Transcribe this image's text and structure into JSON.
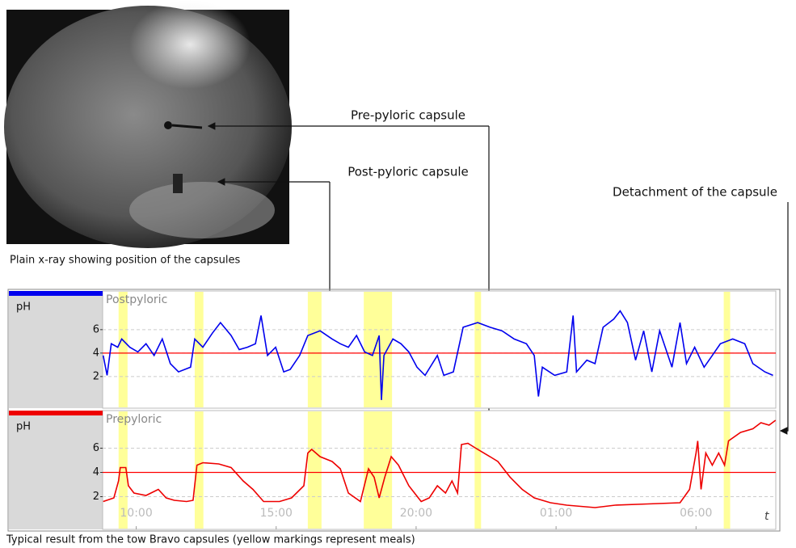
{
  "image": {
    "caption": "Plain x-ray showing position of the capsules"
  },
  "annotations": {
    "pre_pyloric": "Pre-pyloric capsule",
    "post_pyloric": "Post-pyloric capsule",
    "detachment": "Detachment of the capsule"
  },
  "caption": "Typical result from the tow Bravo capsules (yellow markings represent meals)",
  "chart_data": [
    {
      "type": "line",
      "y_label": "pH",
      "xlim": [
        8.8,
        32.85
      ],
      "ylim": [
        -0.7,
        9.3
      ],
      "yticks": [
        2,
        4,
        6
      ],
      "grid": true,
      "threshold": 4,
      "threshold_color": "#ff0000",
      "meal_color": "#ffff99",
      "meals": [
        [
          9.37,
          9.69
        ],
        [
          12.09,
          12.4
        ],
        [
          16.13,
          16.62
        ],
        [
          18.13,
          19.14
        ],
        [
          22.09,
          22.32
        ],
        [
          30.99,
          31.22
        ]
      ],
      "x": [
        8.82,
        8.96,
        9.11,
        9.34,
        9.48,
        9.77,
        10.06,
        10.35,
        10.64,
        10.93,
        11.22,
        11.51,
        11.94,
        12.09,
        12.38,
        12.72,
        13.01,
        13.39,
        13.68,
        13.97,
        14.26,
        14.46,
        14.69,
        14.98,
        15.27,
        15.5,
        15.84,
        16.13,
        16.57,
        17.0,
        17.29,
        17.58,
        17.87,
        18.16,
        18.44,
        18.68,
        18.76,
        18.85,
        19.17,
        19.46,
        19.74,
        20.03,
        20.32,
        20.76,
        20.99,
        21.33,
        21.68,
        22.2,
        22.64,
        23.07,
        23.5,
        23.94,
        24.22,
        24.37,
        24.51,
        24.95,
        25.38,
        25.61,
        25.73,
        26.1,
        26.39,
        26.68,
        27.06,
        27.29,
        27.55,
        27.84,
        28.13,
        28.42,
        28.7,
        29.14,
        29.43,
        29.66,
        29.95,
        30.29,
        30.58,
        30.87,
        31.31,
        31.74,
        32.03,
        32.46,
        32.75
      ],
      "series": [
        {
          "name": "Postpyloric",
          "color": "#0000ee",
          "values": [
            3.8,
            2.1,
            4.8,
            4.5,
            5.2,
            4.5,
            4.1,
            4.8,
            3.8,
            5.2,
            3.1,
            2.4,
            2.8,
            5.2,
            4.5,
            5.7,
            6.6,
            5.5,
            4.3,
            4.5,
            4.8,
            7.2,
            3.8,
            4.5,
            2.4,
            2.6,
            3.8,
            5.5,
            5.9,
            5.2,
            4.8,
            4.5,
            5.5,
            4.1,
            3.8,
            5.5,
            0.0,
            3.8,
            5.2,
            4.8,
            4.1,
            2.8,
            2.1,
            3.8,
            2.1,
            2.4,
            6.2,
            6.6,
            6.2,
            5.9,
            5.2,
            4.8,
            3.8,
            0.3,
            2.8,
            2.1,
            2.4,
            7.2,
            2.4,
            3.4,
            3.1,
            6.2,
            6.9,
            7.6,
            6.6,
            3.4,
            5.9,
            2.4,
            5.9,
            2.8,
            6.6,
            3.1,
            4.5,
            2.8,
            3.8,
            4.8,
            5.2,
            4.8,
            3.1,
            2.4,
            2.1
          ]
        }
      ]
    },
    {
      "type": "line",
      "y_label": "pH",
      "x_label": "t",
      "xlim": [
        8.8,
        32.85
      ],
      "ylim": [
        -0.7,
        9.1
      ],
      "yticks": [
        2,
        4,
        6
      ],
      "grid": true,
      "xticks": [
        {
          "value": 10,
          "label": "10:00"
        },
        {
          "value": 15,
          "label": "15:00"
        },
        {
          "value": 20,
          "label": "20:00"
        },
        {
          "value": 25,
          "label": "01:00"
        },
        {
          "value": 30,
          "label": "06:00"
        }
      ],
      "threshold": 4,
      "threshold_color": "#ff0000",
      "meal_color": "#ffff99",
      "meals": [
        [
          9.37,
          9.69
        ],
        [
          12.09,
          12.4
        ],
        [
          16.13,
          16.62
        ],
        [
          18.13,
          19.14
        ],
        [
          22.09,
          22.32
        ],
        [
          30.99,
          31.22
        ]
      ],
      "x": [
        8.82,
        9.2,
        9.37,
        9.43,
        9.63,
        9.72,
        9.92,
        10.35,
        10.79,
        11.07,
        11.36,
        11.8,
        12.03,
        12.17,
        12.38,
        12.95,
        13.39,
        13.82,
        14.17,
        14.55,
        15.12,
        15.55,
        15.99,
        16.13,
        16.27,
        16.57,
        17.0,
        17.29,
        17.58,
        18.01,
        18.3,
        18.5,
        18.68,
        18.88,
        19.11,
        19.37,
        19.74,
        20.18,
        20.47,
        20.76,
        21.05,
        21.28,
        21.48,
        21.62,
        21.85,
        22.2,
        22.64,
        22.92,
        23.36,
        23.79,
        24.22,
        24.8,
        25.38,
        26.39,
        27.11,
        28.27,
        29.43,
        29.77,
        30.0,
        30.06,
        30.18,
        30.35,
        30.58,
        30.81,
        31.02,
        31.16,
        31.59,
        32.03,
        32.32,
        32.61,
        32.84
      ],
      "series": [
        {
          "name": "Prepyloric",
          "color": "#ee0000",
          "values": [
            1.6,
            1.9,
            3.3,
            4.4,
            4.4,
            2.9,
            2.3,
            2.1,
            2.6,
            1.9,
            1.7,
            1.6,
            1.7,
            4.6,
            4.8,
            4.7,
            4.4,
            3.3,
            2.6,
            1.6,
            1.6,
            1.9,
            2.9,
            5.6,
            5.9,
            5.3,
            4.9,
            4.3,
            2.3,
            1.6,
            4.3,
            3.6,
            1.9,
            3.6,
            5.3,
            4.6,
            2.9,
            1.6,
            1.9,
            2.9,
            2.3,
            3.3,
            2.3,
            6.3,
            6.4,
            5.9,
            5.3,
            4.9,
            3.6,
            2.6,
            1.9,
            1.5,
            1.3,
            1.1,
            1.3,
            1.4,
            1.5,
            2.6,
            5.6,
            6.6,
            2.6,
            5.6,
            4.6,
            5.6,
            4.6,
            6.6,
            7.3,
            7.6,
            8.1,
            7.9,
            8.3
          ]
        }
      ]
    }
  ]
}
